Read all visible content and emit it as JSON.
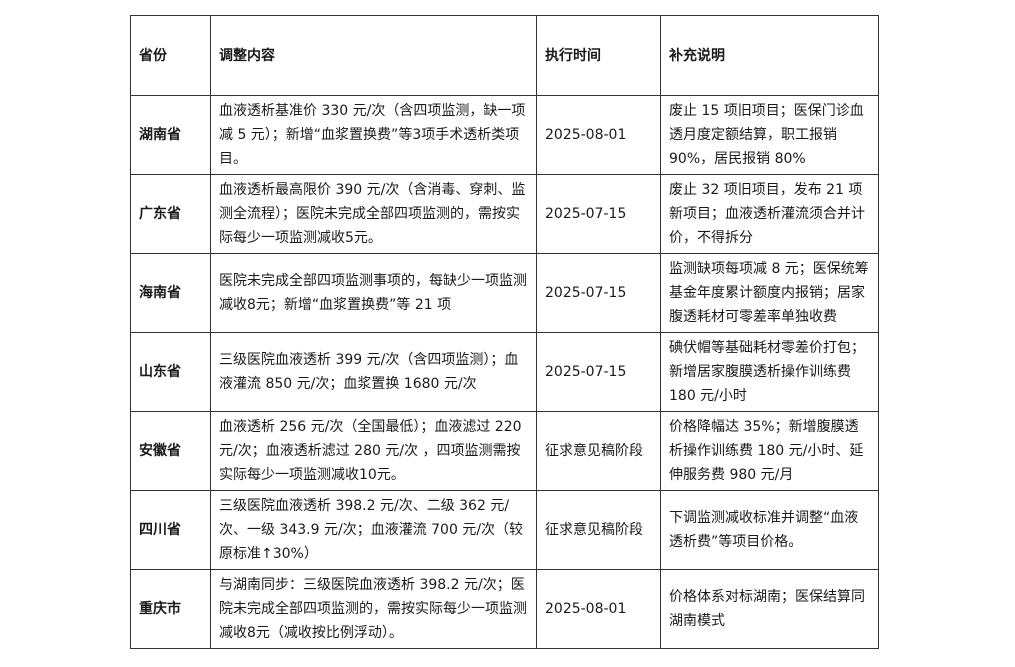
{
  "table": {
    "headers": [
      "省份",
      "调整内容",
      "执行时间",
      "补充说明"
    ],
    "rows": [
      {
        "province": "湖南省",
        "content": "血液透析基准价 330 元/次（含四项监测，缺一项减 5 元）；新增“血浆置换费”等3项手术透析类项目。",
        "date": "2025-08-01",
        "note": "废止 15 项旧项目；医保门诊血透月度定额结算，职工报销 90%，居民报销 80%"
      },
      {
        "province": "广东省",
        "content": "血液透析最高限价 390 元/次（含消毒、穿刺、监测全流程）；医院未完成全部四项监测的，需按实际每少一项监测减收5元。",
        "date": "2025-07-15",
        "note": "废止 32 项旧项目，发布 21 项新项目；血液透析灌流须合并计价，不得拆分"
      },
      {
        "province": "海南省",
        "content": "医院未完成全部四项监测事项的，每缺少一项监测减收8元；新增“血浆置换费”等 21 项",
        "date": "2025-07-15",
        "note": "监测缺项每项减 8 元；医保统筹基金年度累计额度内报销；居家腹透耗材可零差率单独收费"
      },
      {
        "province": "山东省",
        "content": "三级医院血液透析 399 元/次（含四项监测）；血液灌流 850 元/次；血浆置换 1680 元/次",
        "date": "2025-07-15",
        "note": "碘伏帽等基础耗材零差价打包；新增居家腹膜透析操作训练费 180 元/小时"
      },
      {
        "province": "安徽省",
        "content": "血液透析 256 元/次（全国最低）；血液滤过 220 元/次；血液透析滤过 280 元/次 ，四项监测需按实际每少一项监测减收10元。",
        "date": "征求意见稿阶段",
        "note": "价格降幅达 35%；新增腹膜透析操作训练费 180 元/小时、延伸服务费 980 元/月"
      },
      {
        "province": "四川省",
        "content": "三级医院血液透析 398.2 元/次、二级 362 元/次、一级 343.9 元/次；血液灌流 700 元/次（较原标准↑30%）",
        "date": "征求意见稿阶段",
        "note": "下调监测减收标准并调整“血液透析费”等项目价格。"
      },
      {
        "province": "重庆市",
        "content": "与湖南同步：三级医院血液透析 398.2 元/次；医院未完成全部四项监测的，需按实际每少一项监测减收8元（减收按比例浮动）。",
        "date": "2025-08-01",
        "note": "价格体系对标湖南；医保结算同湖南模式"
      }
    ]
  }
}
